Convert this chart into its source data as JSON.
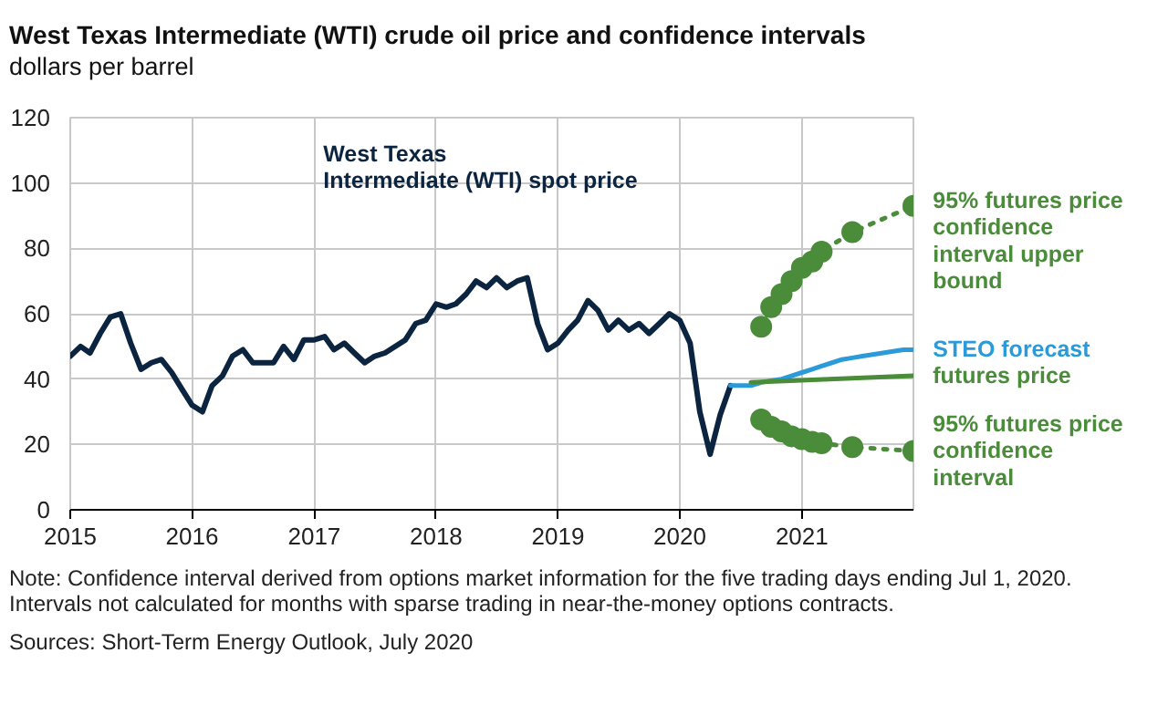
{
  "chart_data": {
    "type": "line",
    "title": "West Texas Intermediate (WTI) crude oil price and confidence intervals",
    "ylabel": "dollars per barrel",
    "annotations": [
      "Note: Confidence interval derived from options market information for the five trading days ending Jul 1, 2020. Intervals not calculated for months with sparse trading in near-the-money options contracts.",
      "Sources: Short-Term Energy Outlook, July 2020"
    ],
    "xlim": [
      "2015-01",
      "2021-12"
    ],
    "xticks": [
      "2015",
      "2016",
      "2017",
      "2018",
      "2019",
      "2020",
      "2021"
    ],
    "ylim": [
      0,
      120
    ],
    "yticks": [
      0,
      20,
      40,
      60,
      80,
      100,
      120
    ],
    "grid": true,
    "legend": false,
    "line_style": "solid",
    "marker": "none",
    "series": [
      {
        "name": "West Texas Intermediate (WTI) spot price",
        "color": "#0b2440",
        "x": [
          "2015-01",
          "2015-02",
          "2015-03",
          "2015-04",
          "2015-05",
          "2015-06",
          "2015-07",
          "2015-08",
          "2015-09",
          "2015-10",
          "2015-11",
          "2015-12",
          "2016-01",
          "2016-02",
          "2016-03",
          "2016-04",
          "2016-05",
          "2016-06",
          "2016-07",
          "2016-08",
          "2016-09",
          "2016-10",
          "2016-11",
          "2016-12",
          "2017-01",
          "2017-02",
          "2017-03",
          "2017-04",
          "2017-05",
          "2017-06",
          "2017-07",
          "2017-08",
          "2017-09",
          "2017-10",
          "2017-11",
          "2017-12",
          "2018-01",
          "2018-02",
          "2018-03",
          "2018-04",
          "2018-05",
          "2018-06",
          "2018-07",
          "2018-08",
          "2018-09",
          "2018-10",
          "2018-11",
          "2018-12",
          "2019-01",
          "2019-02",
          "2019-03",
          "2019-04",
          "2019-05",
          "2019-06",
          "2019-07",
          "2019-08",
          "2019-09",
          "2019-10",
          "2019-11",
          "2019-12",
          "2020-01",
          "2020-02",
          "2020-03",
          "2020-04",
          "2020-05",
          "2020-06"
        ],
        "values": [
          47,
          50,
          48,
          54,
          59,
          60,
          51,
          43,
          45,
          46,
          42,
          37,
          32,
          30,
          38,
          41,
          47,
          49,
          45,
          45,
          45,
          50,
          46,
          52,
          52,
          53,
          49,
          51,
          48,
          45,
          47,
          48,
          50,
          52,
          57,
          58,
          63,
          62,
          63,
          66,
          70,
          68,
          71,
          68,
          70,
          71,
          57,
          49,
          51,
          55,
          58,
          64,
          61,
          55,
          58,
          55,
          57,
          54,
          57,
          60,
          58,
          51,
          30,
          17,
          29,
          38
        ]
      },
      {
        "name": "STEO forecast",
        "color": "#2a9ad8",
        "x": [
          "2020-06",
          "2020-07",
          "2020-08",
          "2020-09",
          "2020-10",
          "2020-11",
          "2020-12",
          "2021-01",
          "2021-02",
          "2021-03",
          "2021-04",
          "2021-05",
          "2021-06",
          "2021-07",
          "2021-08",
          "2021-09",
          "2021-10",
          "2021-11",
          "2021-12"
        ],
        "values": [
          38,
          38,
          38,
          39,
          39.5,
          40,
          41,
          42,
          43,
          44,
          45,
          46,
          46.5,
          47,
          47.5,
          48,
          48.5,
          49,
          49
        ]
      },
      {
        "name": "futures price",
        "color": "#4a8c3a",
        "x": [
          "2020-08",
          "2021-12"
        ],
        "values": [
          39,
          41
        ]
      },
      {
        "name": "95% futures price confidence interval upper bound",
        "color": "#4a8c3a",
        "line_style": "dotted",
        "marker": "circle",
        "x": [
          "2020-09",
          "2020-10",
          "2020-11",
          "2020-12",
          "2021-01",
          "2021-02",
          "2021-03",
          "2021-06",
          "2021-12"
        ],
        "values": [
          56,
          62,
          66,
          70,
          74,
          76,
          79,
          85,
          93
        ]
      },
      {
        "name": "95% futures price confidence interval",
        "color": "#4a8c3a",
        "line_style": "dotted",
        "marker": "circle",
        "x": [
          "2020-09",
          "2020-10",
          "2020-11",
          "2020-12",
          "2021-01",
          "2021-02",
          "2021-03",
          "2021-06",
          "2021-12"
        ],
        "values": [
          27.6,
          25.4,
          24,
          22.5,
          21.6,
          20.8,
          20.4,
          19.2,
          18
        ]
      }
    ]
  }
}
